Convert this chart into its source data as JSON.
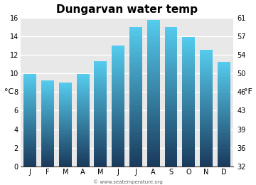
{
  "title": "Dungarvan water temp",
  "months": [
    "J",
    "F",
    "M",
    "A",
    "M",
    "J",
    "J",
    "A",
    "S",
    "O",
    "N",
    "D"
  ],
  "values_c": [
    9.9,
    9.2,
    9.0,
    9.9,
    11.3,
    13.0,
    15.0,
    15.7,
    15.0,
    13.9,
    12.5,
    11.2
  ],
  "ylim_c": [
    0,
    16
  ],
  "yticks_c": [
    0,
    2,
    4,
    6,
    8,
    10,
    12,
    14,
    16
  ],
  "yticks_f": [
    32,
    36,
    39,
    43,
    46,
    50,
    54,
    57,
    61
  ],
  "ylabel_left": "°C",
  "ylabel_right": "°F",
  "bar_color_top": "#55ccee",
  "bar_color_bottom": "#1a3a5c",
  "background_color": "#e8e8e8",
  "fig_background": "#ffffff",
  "watermark": "© www.seatemperature.org",
  "title_fontsize": 11,
  "tick_fontsize": 7,
  "label_fontsize": 8
}
